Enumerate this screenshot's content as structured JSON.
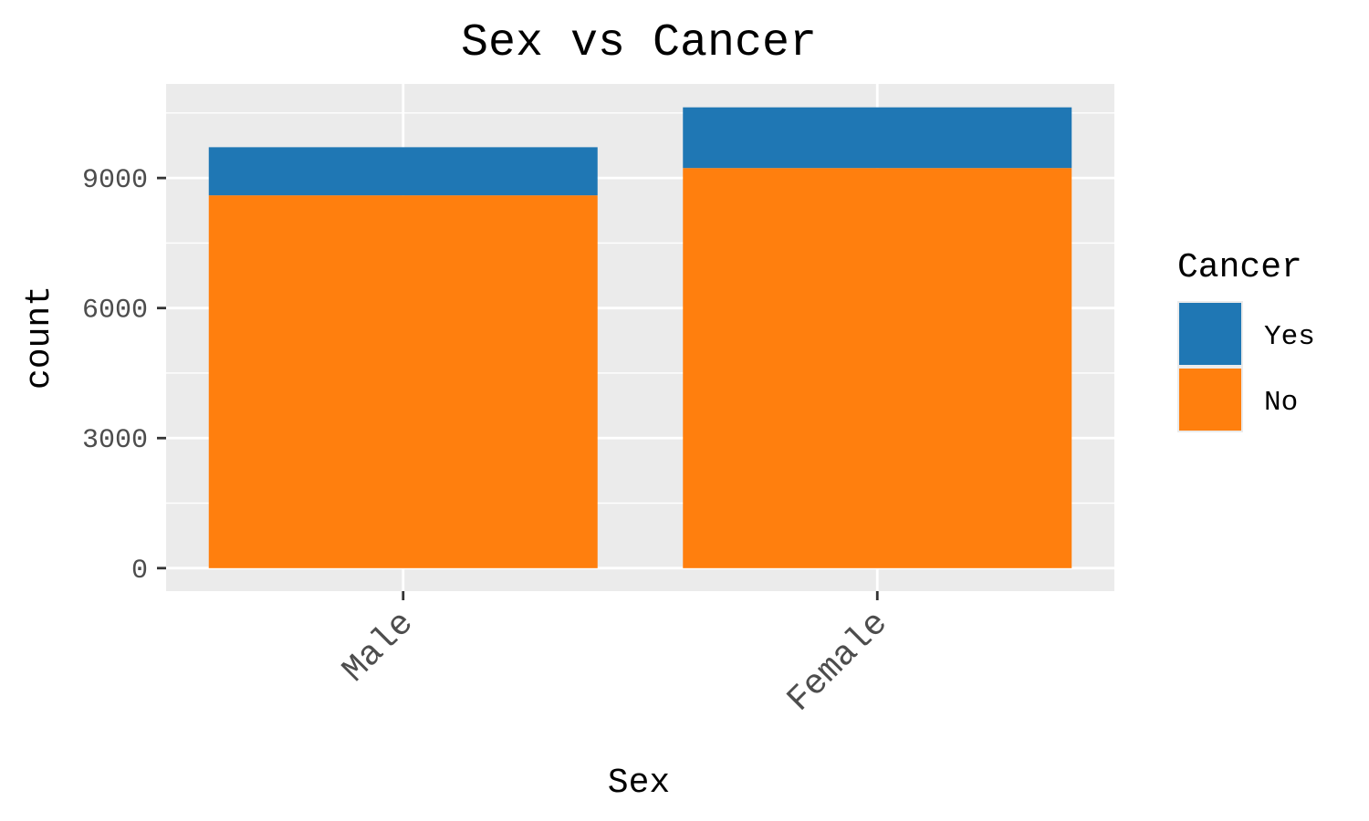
{
  "chart_data": {
    "type": "bar",
    "stacked": true,
    "title": "Sex vs Cancer",
    "xlabel": "Sex",
    "ylabel": "count",
    "categories": [
      "Male",
      "Female"
    ],
    "series": [
      {
        "name": "No",
        "values": [
          8600,
          9230
        ],
        "color": "#ff7f0e"
      },
      {
        "name": "Yes",
        "values": [
          1110,
          1400
        ],
        "color": "#1f77b4"
      }
    ],
    "ylim": [
      -530,
      11170
    ],
    "yticks": [
      0,
      3000,
      6000,
      9000
    ],
    "ytick_labels": [
      "0",
      "3000",
      "6000",
      "9000"
    ],
    "grid": true,
    "panel_background": "#ebebeb",
    "legend": {
      "title": "Cancer",
      "placement": "right",
      "entries": [
        "Yes",
        "No"
      ]
    }
  }
}
